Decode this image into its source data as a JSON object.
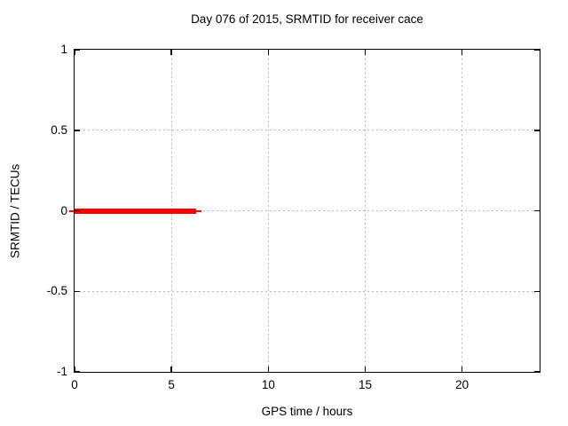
{
  "chart_data": {
    "type": "line",
    "title": "Day 076 of 2015, SRMTID for receiver cace",
    "xlabel": "GPS time / hours",
    "ylabel": "SRMTID / TECUs",
    "xlim": [
      0,
      24
    ],
    "ylim": [
      -1,
      1
    ],
    "xticks": [
      {
        "v": 0,
        "label": "0"
      },
      {
        "v": 5,
        "label": "5"
      },
      {
        "v": 10,
        "label": "10"
      },
      {
        "v": 15,
        "label": "15"
      },
      {
        "v": 20,
        "label": "20"
      }
    ],
    "yticks": [
      {
        "v": 1,
        "label": "1"
      },
      {
        "v": 0.5,
        "label": "0.5"
      },
      {
        "v": 0,
        "label": "0"
      },
      {
        "v": -0.5,
        "label": "-0.5"
      },
      {
        "v": -1,
        "label": "-1"
      }
    ],
    "grid": true,
    "grid_style": "dotted",
    "legend": false,
    "series": [
      {
        "name": "SRMTID",
        "color": "#ff0000",
        "style": "thick-line",
        "x": [
          0,
          6.45
        ],
        "y": [
          0,
          0
        ]
      }
    ],
    "grid_color": "#b8b8b8",
    "axis_color": "#000000",
    "text_color": "#000000",
    "background": "#ffffff"
  }
}
